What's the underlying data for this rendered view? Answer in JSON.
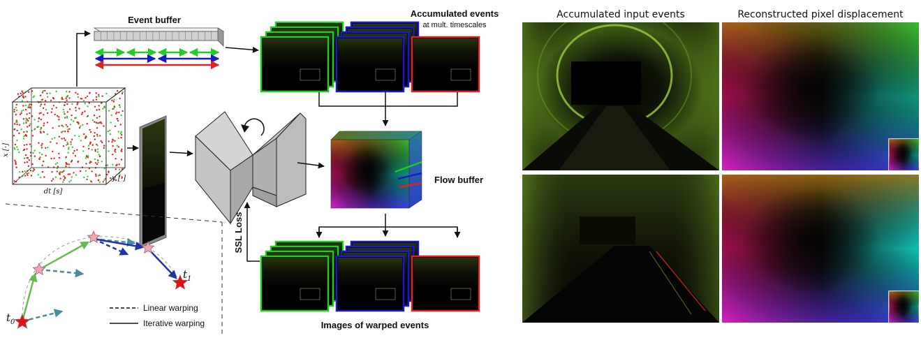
{
  "labels": {
    "event_buffer": "Event buffer",
    "accumulated_events": "Accumulated events",
    "mult_timescales": "at mult. timescales",
    "flow_buffer": "Flow buffer",
    "ssl_loss": "SSL Loss",
    "images_warped": "Images of warped events",
    "axis_dt": "dt [s]",
    "axis_x": "x [-]",
    "axis_y": "y [-]",
    "t0": "t",
    "t0_sub": "0",
    "t1": "t",
    "t1_sub": "1",
    "legend_linear": "Linear warping",
    "legend_iterative": "Iterative warping",
    "panel_left_title": "Accumulated input events",
    "panel_right_title": "Reconstructed pixel displacement"
  },
  "colors": {
    "frame_green": "#22cc22",
    "frame_blue": "#1a1acc",
    "frame_red": "#dd2222",
    "arrow_green": "#66bb55",
    "arrow_teal": "#4a8c99",
    "arrow_blue": "#2233aa",
    "star_pink": "#f0a8b0",
    "star_red": "#dd1111"
  },
  "icons": {
    "cycle": "circular-arrow-icon",
    "star": "star-icon",
    "colorwheel": "color-wheel-icon"
  }
}
